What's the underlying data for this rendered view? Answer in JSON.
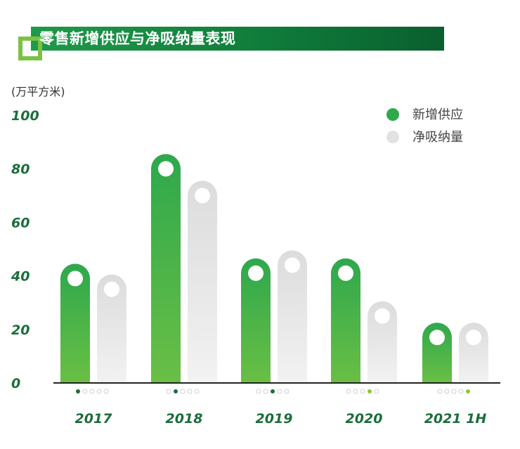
{
  "title": "零售新增供应与净吸纳量表现",
  "unit": "(万平方米)",
  "colors": {
    "supply_top": "#2ea84c",
    "supply_bottom": "#6abf45",
    "absorb_top": "#dcdcdc",
    "absorb_bottom": "#f2f2f2",
    "axis": "#222222",
    "title_bg": "#138040",
    "corner": "#7cc242"
  },
  "chart_data": {
    "type": "bar",
    "categories": [
      "2017",
      "2018",
      "2019",
      "2020",
      "2021 1H"
    ],
    "ylim": [
      0,
      100
    ],
    "yticks": [
      "0",
      "20",
      "40",
      "60",
      "80",
      "100"
    ],
    "series": [
      {
        "name": "新增供应",
        "values": [
          39,
          80,
          41,
          41,
          17
        ]
      },
      {
        "name": "净吸纳量",
        "values": [
          35,
          70,
          44,
          25,
          17
        ]
      }
    ],
    "legend_position": "top-right",
    "grid": false
  }
}
